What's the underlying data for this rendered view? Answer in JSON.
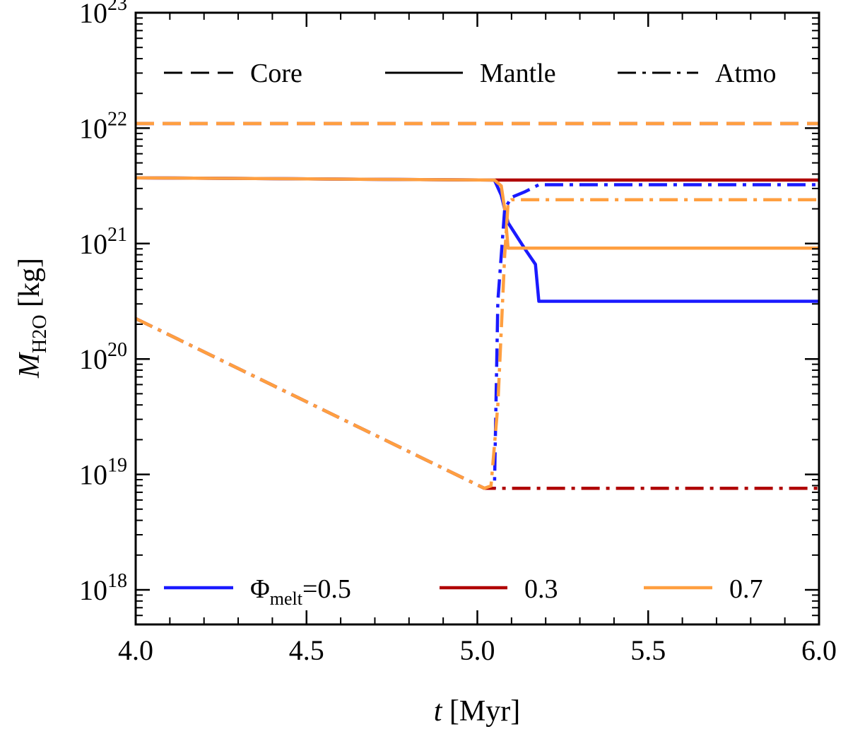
{
  "chart_data": {
    "type": "line",
    "title": "",
    "xlabel": {
      "var": "t",
      "unit": " [Myr]"
    },
    "ylabel": {
      "var": "M",
      "sub": "H2O",
      "unit": " [kg]"
    },
    "xlim": [
      4.0,
      6.0
    ],
    "ylim_log10": [
      17.7,
      23
    ],
    "x_ticks": [
      {
        "value": 4.0,
        "label": "4.0"
      },
      {
        "value": 4.5,
        "label": "4.5"
      },
      {
        "value": 5.0,
        "label": "5.0"
      },
      {
        "value": 5.5,
        "label": "5.5"
      },
      {
        "value": 6.0,
        "label": "6.0"
      }
    ],
    "y_ticks": [
      {
        "exp": 18,
        "base": "10",
        "sup": "18"
      },
      {
        "exp": 19,
        "base": "10",
        "sup": "19"
      },
      {
        "exp": 20,
        "base": "10",
        "sup": "20"
      },
      {
        "exp": 21,
        "base": "10",
        "sup": "21"
      },
      {
        "exp": 22,
        "base": "10",
        "sup": "22"
      },
      {
        "exp": 23,
        "base": "10",
        "sup": "23"
      }
    ],
    "style_legend": [
      {
        "label": "Core",
        "dash": "dashed"
      },
      {
        "label": "Mantle",
        "dash": "solid"
      },
      {
        "label": "Atmo",
        "dash": "dashdot"
      }
    ],
    "color_legend": [
      {
        "phi": "Φ",
        "sub": "melt",
        "value": "=0.5",
        "color": "#1a1aff"
      },
      {
        "phi": "",
        "sub": "",
        "value": "0.3",
        "color": "#b00000"
      },
      {
        "phi": "",
        "sub": "",
        "value": "0.7",
        "color": "#ff9f40"
      }
    ],
    "series": [
      {
        "name": "core-0.5",
        "color": "#1a1aff",
        "dash": "dashed",
        "x": [
          4.0,
          6.0
        ],
        "log10y": [
          22.04,
          22.04
        ]
      },
      {
        "name": "core-0.3",
        "color": "#b00000",
        "dash": "dashed",
        "x": [
          4.0,
          6.0
        ],
        "log10y": [
          22.04,
          22.04
        ]
      },
      {
        "name": "core-0.7",
        "color": "#ff9f40",
        "dash": "dashed",
        "x": [
          4.0,
          6.0
        ],
        "log10y": [
          22.04,
          22.04
        ]
      },
      {
        "name": "mantle-0.3",
        "color": "#b00000",
        "dash": "solid",
        "x": [
          4.0,
          5.05,
          6.0
        ],
        "log10y": [
          21.57,
          21.55,
          21.55
        ]
      },
      {
        "name": "mantle-0.5",
        "color": "#1a1aff",
        "dash": "solid",
        "x": [
          4.0,
          5.05,
          5.07,
          5.09,
          5.14,
          5.17,
          5.18,
          6.0
        ],
        "log10y": [
          21.57,
          21.55,
          21.42,
          21.18,
          20.95,
          20.82,
          20.5,
          20.5
        ]
      },
      {
        "name": "mantle-0.7",
        "color": "#ff9f40",
        "dash": "solid",
        "x": [
          4.0,
          5.05,
          5.07,
          5.08,
          5.09,
          6.0
        ],
        "log10y": [
          21.57,
          21.55,
          21.5,
          21.3,
          20.96,
          20.96
        ]
      },
      {
        "name": "atmo-0.5",
        "color": "#1a1aff",
        "dash": "dashdot",
        "x": [
          4.0,
          5.02,
          5.05,
          5.06,
          5.08,
          5.1,
          5.14,
          5.18,
          6.0
        ],
        "log10y": [
          20.35,
          18.88,
          18.88,
          20.5,
          21.3,
          21.4,
          21.45,
          21.51,
          21.51
        ]
      },
      {
        "name": "atmo-0.3",
        "color": "#b00000",
        "dash": "dashdot",
        "x": [
          4.0,
          5.02,
          5.05,
          6.0
        ],
        "log10y": [
          20.35,
          18.88,
          18.88,
          18.88
        ]
      },
      {
        "name": "atmo-0.7",
        "color": "#ff9f40",
        "dash": "dashdot",
        "x": [
          4.0,
          5.02,
          5.04,
          5.06,
          5.08,
          5.09,
          5.1,
          6.0
        ],
        "log10y": [
          20.35,
          18.88,
          18.9,
          19.6,
          20.9,
          21.35,
          21.38,
          21.38
        ]
      }
    ]
  }
}
